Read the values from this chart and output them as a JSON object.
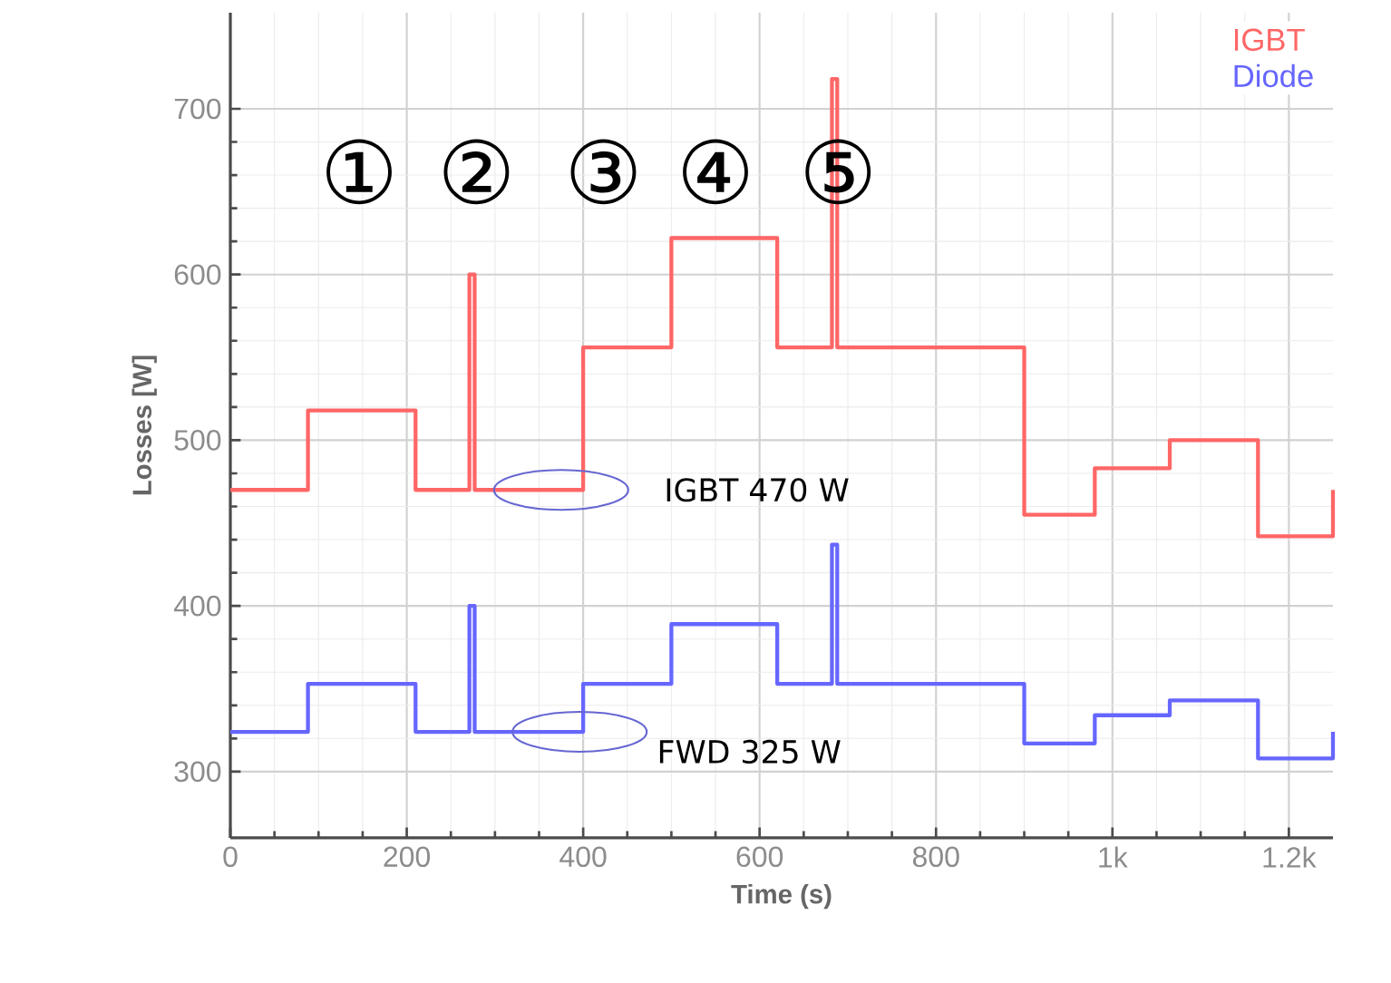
{
  "chart_data": {
    "type": "step",
    "xlabel": "Time (s)",
    "ylabel": "Losses [W]",
    "x": [
      0,
      88,
      210,
      271,
      277,
      400,
      500,
      620,
      682,
      688,
      900,
      980,
      1065,
      1165,
      1250
    ],
    "series": [
      {
        "name": "IGBT",
        "color": "#ff6666",
        "values": [
          470,
          518,
          470,
          600,
          470,
          556,
          622,
          556,
          718,
          556,
          455,
          483,
          500,
          442,
          470
        ]
      },
      {
        "name": "Diode",
        "color": "#6666ff",
        "values": [
          324,
          353,
          324,
          400,
          324,
          353,
          389,
          353,
          437,
          353,
          317,
          334,
          343,
          308,
          324
        ]
      }
    ],
    "xlim": [
      0,
      1250
    ],
    "ylim": [
      260,
      758
    ],
    "xticks": [
      0,
      200,
      400,
      600,
      800,
      {
        "value": 1000,
        "label": "1k"
      },
      {
        "value": 1200,
        "label": "1.2k"
      }
    ],
    "yticks": [
      300,
      400,
      500,
      600,
      700
    ],
    "grid": true,
    "legend": "top right",
    "annotations": [
      "①",
      "②",
      "③",
      "④",
      "⑤",
      "IGBT 470 W",
      "FWD 325 W"
    ]
  }
}
